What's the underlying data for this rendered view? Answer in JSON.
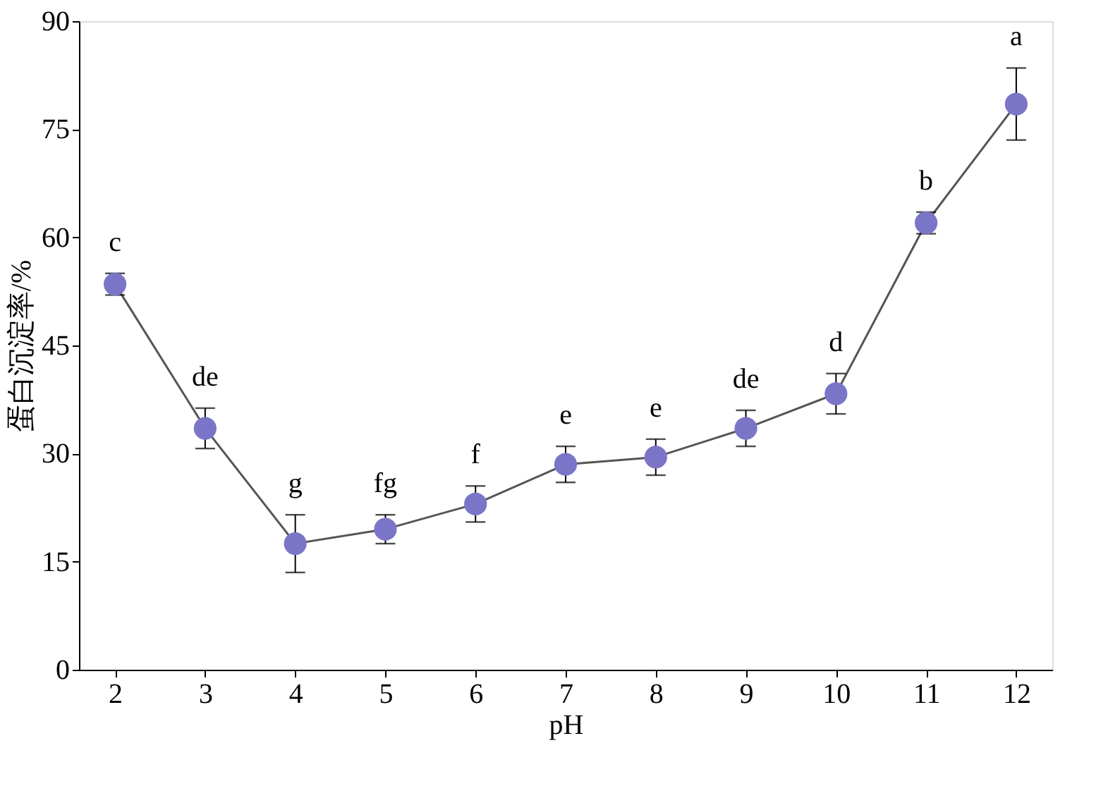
{
  "chart_data": {
    "type": "line",
    "xlabel": "pH",
    "ylabel": "蛋白沉淀率/%",
    "x": [
      2,
      3,
      4,
      5,
      6,
      7,
      8,
      9,
      10,
      11,
      12
    ],
    "series": [
      {
        "color": "#7b75c8",
        "values": [
          53.5,
          33.5,
          17.5,
          19.5,
          23,
          28.5,
          29.5,
          33.5,
          38.3,
          62,
          78.5
        ],
        "errors": [
          1.5,
          2.8,
          4,
          2,
          2.5,
          2.5,
          2.5,
          2.5,
          2.8,
          1.5,
          5
        ],
        "value_labels": [
          "c",
          "de",
          "g",
          "fg",
          "f",
          "e",
          "e",
          "de",
          "d",
          "b",
          "a"
        ]
      }
    ],
    "xlim": [
      1.6,
      12.4
    ],
    "xticks": [
      2,
      3,
      4,
      5,
      6,
      7,
      8,
      9,
      10,
      11,
      12
    ],
    "ylim": [
      0,
      90
    ],
    "yticks": [
      0,
      15,
      30,
      45,
      60,
      75,
      90
    ],
    "marker": "circle",
    "line_style": "solid",
    "grid": false
  }
}
